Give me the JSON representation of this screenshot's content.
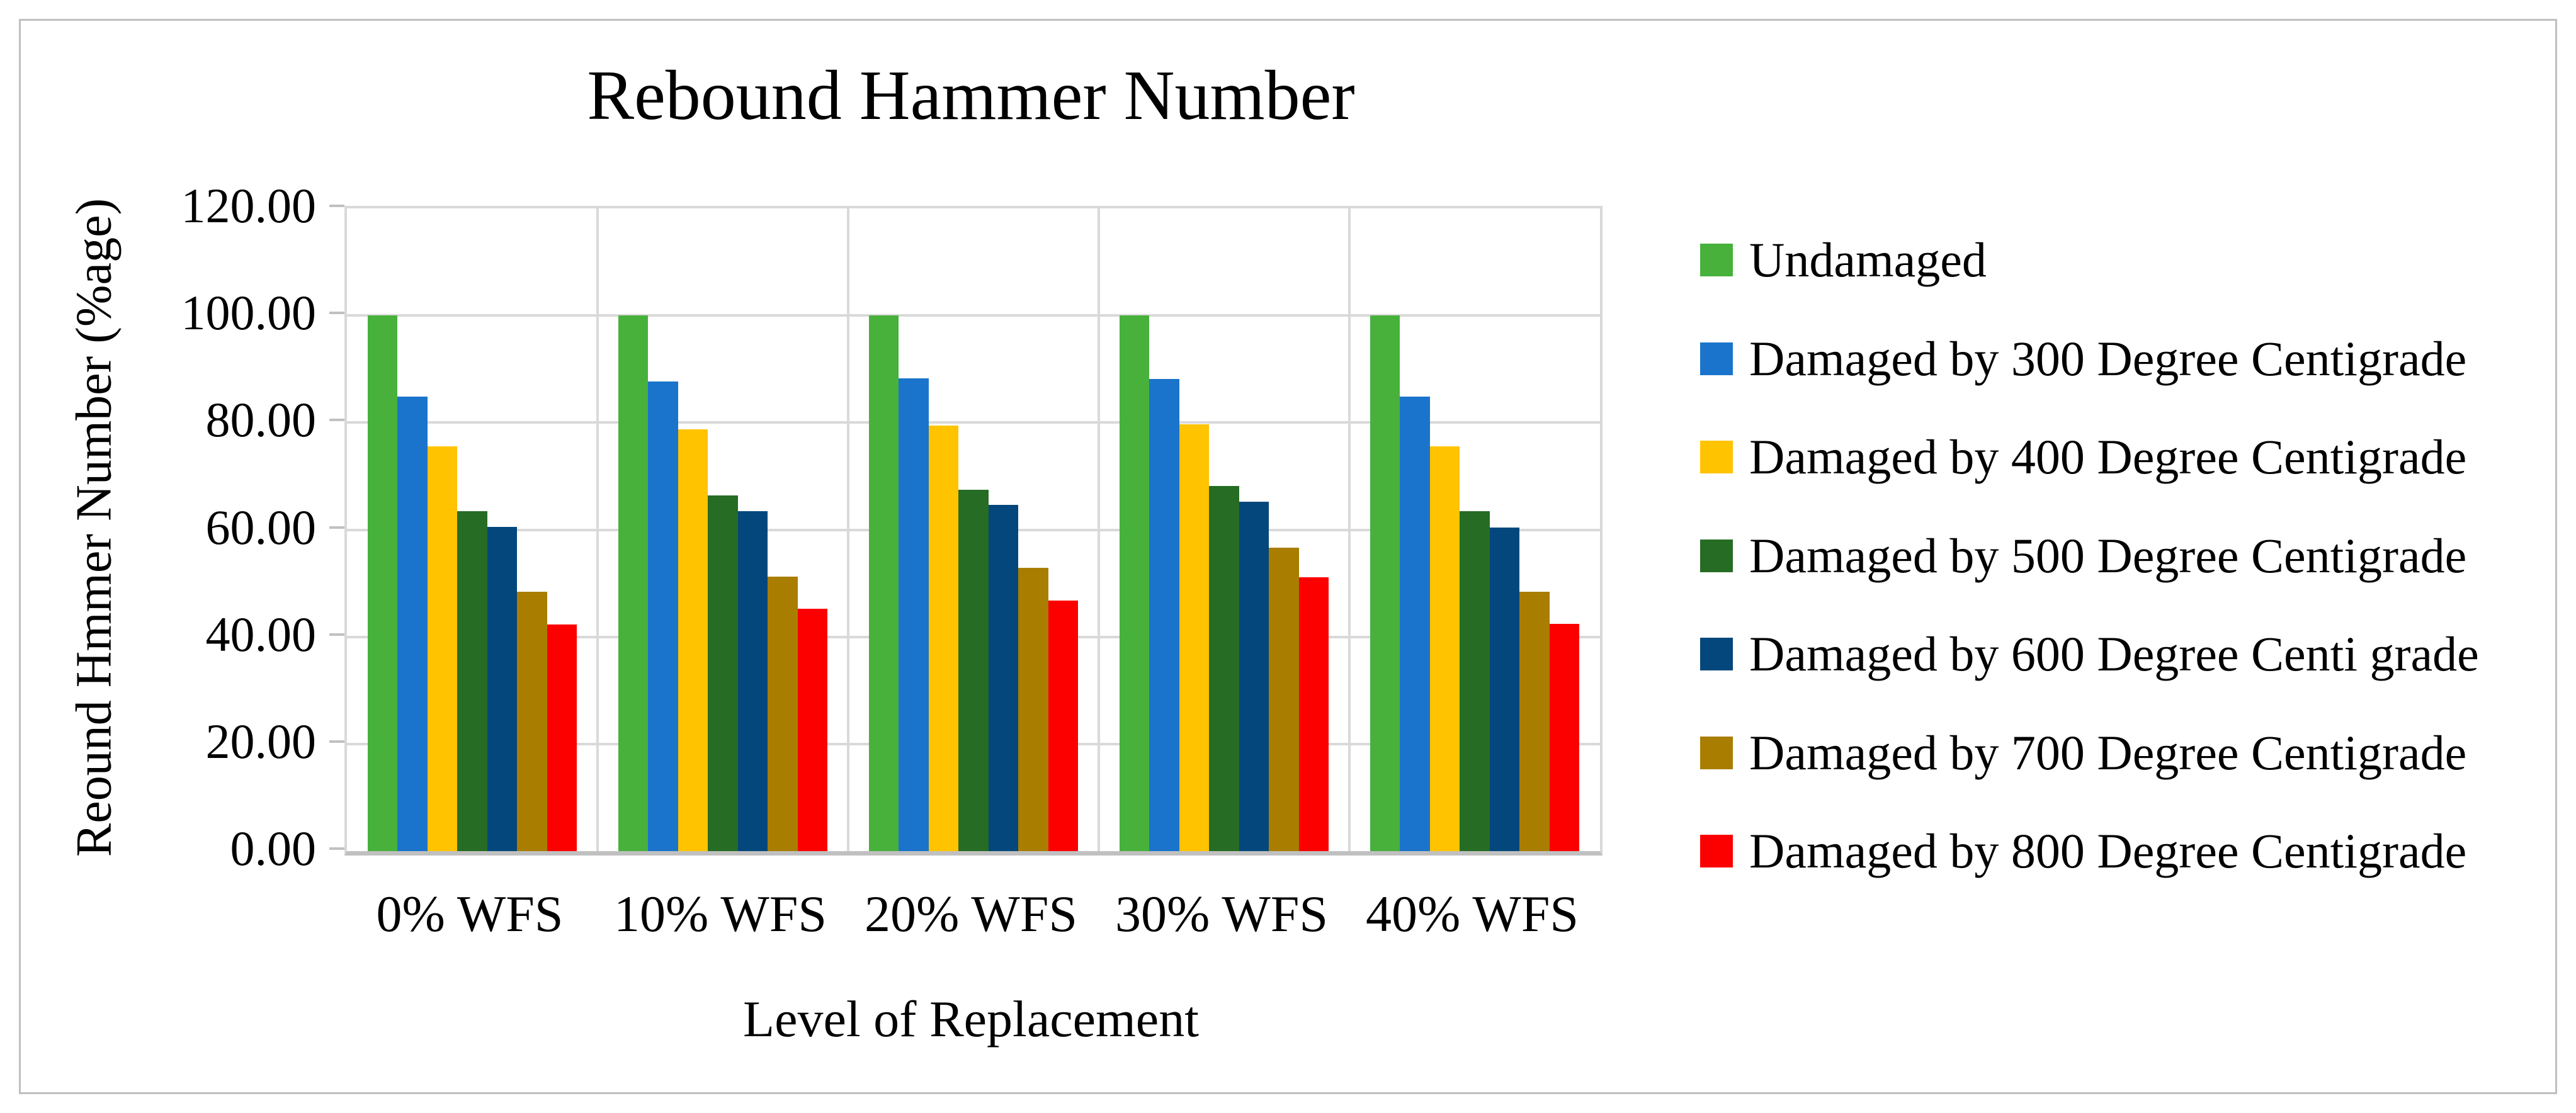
{
  "figure": {
    "background": "#FFFFFF",
    "border_color": "#BFBFBF"
  },
  "title": "Rebound Hammer Number",
  "y_axis": {
    "title": "Reound Hmmer Number (%age)",
    "tick_labels": [
      "120.00",
      "100.00",
      "80.00",
      "60.00",
      "40.00",
      "20.00",
      "0.00"
    ]
  },
  "x_axis": {
    "title": "Level of Replacement",
    "category_labels": [
      "0% WFS",
      "10% WFS",
      "20% WFS",
      "30% WFS",
      "40% WFS"
    ]
  },
  "legend": {
    "position": "right"
  },
  "chart_data": {
    "type": "bar",
    "title": "Rebound Hammer Number",
    "xlabel": "Level of Replacement",
    "ylabel": "Reound Hmmer Number (%age)",
    "categories": [
      "0% WFS",
      "10% WFS",
      "20% WFS",
      "30% WFS",
      "40% WFS"
    ],
    "series": [
      {
        "name": "Undamaged",
        "color": "#47B13C",
        "values": [
          100.0,
          100.0,
          100.0,
          100.0,
          100.0
        ]
      },
      {
        "name": "Damaged by 300 Degree Centigrade",
        "color": "#1B74CB",
        "values": [
          84.9,
          87.7,
          88.3,
          88.1,
          84.9
        ]
      },
      {
        "name": "Damaged by 400 Degree Centigrade",
        "color": "#FFC300",
        "values": [
          75.6,
          78.7,
          79.4,
          79.7,
          75.6
        ]
      },
      {
        "name": "Damaged by 500 Degree Centigrade",
        "color": "#266C24",
        "values": [
          63.5,
          66.4,
          67.5,
          68.2,
          63.5
        ]
      },
      {
        "name": "Damaged by 600 Degree Centi grade",
        "color": "#04477C",
        "values": [
          60.5,
          63.5,
          64.7,
          65.2,
          60.4
        ]
      },
      {
        "name": "Damaged by 700 Degree Centigrade",
        "color": "#A97D00",
        "values": [
          48.4,
          51.3,
          52.9,
          56.7,
          48.4
        ]
      },
      {
        "name": "Damaged by 800 Degree Centigrade",
        "color": "#FC0000",
        "values": [
          42.3,
          45.3,
          46.8,
          51.1,
          42.4
        ]
      }
    ],
    "ylim": [
      0,
      120
    ],
    "ytick_step": 20,
    "grid": true,
    "gridline_color": "#D9D9D9",
    "axis_line_color": "#C0C0C0",
    "legend_position": "right"
  }
}
